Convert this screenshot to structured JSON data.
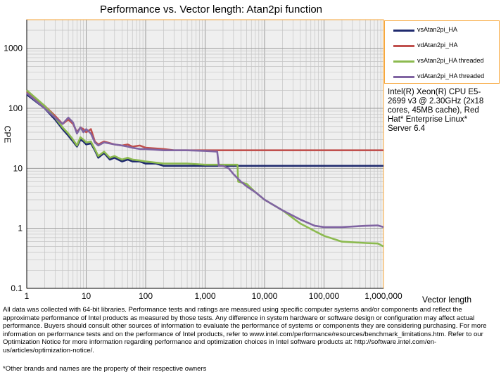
{
  "chart_data": {
    "type": "line",
    "title": "Performance vs. Vector length: Atan2pi function",
    "xlabel": "Vector length",
    "ylabel": "CPE",
    "xscale": "log",
    "yscale": "log",
    "xlim": [
      1,
      1000000
    ],
    "ylim": [
      0.1,
      3000
    ],
    "grid": true,
    "legend_position": "top-right",
    "x_tick_labels": [
      "1",
      "10",
      "100",
      "1,000",
      "10,000",
      "100,000",
      "1,000,000"
    ],
    "y_tick_labels": [
      "0.1",
      "1",
      "10",
      "100",
      "1000"
    ],
    "series": [
      {
        "name": "vsAtan2pi_HA",
        "color": "#1f2a6e",
        "points": [
          [
            1,
            170
          ],
          [
            2,
            100
          ],
          [
            3,
            65
          ],
          [
            4,
            45
          ],
          [
            5,
            35
          ],
          [
            6,
            28
          ],
          [
            7,
            23
          ],
          [
            8,
            30
          ],
          [
            9,
            28
          ],
          [
            10,
            25
          ],
          [
            12,
            26
          ],
          [
            14,
            20
          ],
          [
            16,
            15
          ],
          [
            20,
            18
          ],
          [
            25,
            14
          ],
          [
            30,
            15
          ],
          [
            40,
            13
          ],
          [
            50,
            14
          ],
          [
            60,
            13
          ],
          [
            80,
            13
          ],
          [
            100,
            12
          ],
          [
            150,
            12
          ],
          [
            200,
            11
          ],
          [
            300,
            11
          ],
          [
            500,
            11
          ],
          [
            1000,
            11
          ],
          [
            2000,
            11
          ],
          [
            5000,
            11
          ],
          [
            10000,
            11
          ],
          [
            100000,
            11
          ],
          [
            1000000,
            11
          ]
        ]
      },
      {
        "name": "vdAtan2pi_HA",
        "color": "#c0504d",
        "points": [
          [
            1,
            190
          ],
          [
            2,
            110
          ],
          [
            3,
            75
          ],
          [
            4,
            55
          ],
          [
            5,
            65
          ],
          [
            6,
            55
          ],
          [
            7,
            40
          ],
          [
            8,
            48
          ],
          [
            9,
            45
          ],
          [
            10,
            40
          ],
          [
            12,
            45
          ],
          [
            14,
            28
          ],
          [
            16,
            25
          ],
          [
            20,
            28
          ],
          [
            30,
            25
          ],
          [
            40,
            24
          ],
          [
            50,
            25
          ],
          [
            60,
            23
          ],
          [
            80,
            24
          ],
          [
            100,
            22
          ],
          [
            200,
            21
          ],
          [
            300,
            20
          ],
          [
            500,
            20
          ],
          [
            1000,
            20
          ],
          [
            2000,
            20
          ],
          [
            5000,
            20
          ],
          [
            10000,
            20
          ],
          [
            100000,
            20
          ],
          [
            1000000,
            20
          ]
        ]
      },
      {
        "name": "vsAtan2pi_HA threaded",
        "color": "#8cba4f",
        "points": [
          [
            1,
            200
          ],
          [
            2,
            110
          ],
          [
            3,
            70
          ],
          [
            4,
            48
          ],
          [
            5,
            38
          ],
          [
            6,
            30
          ],
          [
            7,
            24
          ],
          [
            8,
            33
          ],
          [
            9,
            30
          ],
          [
            10,
            27
          ],
          [
            12,
            28
          ],
          [
            14,
            21
          ],
          [
            16,
            16
          ],
          [
            20,
            19
          ],
          [
            25,
            15
          ],
          [
            30,
            16
          ],
          [
            40,
            14
          ],
          [
            50,
            15
          ],
          [
            60,
            14
          ],
          [
            80,
            13.5
          ],
          [
            100,
            13
          ],
          [
            200,
            12
          ],
          [
            500,
            12
          ],
          [
            1000,
            11.5
          ],
          [
            2000,
            11.5
          ],
          [
            3500,
            11.5
          ],
          [
            3600,
            6
          ],
          [
            5000,
            5.5
          ],
          [
            7000,
            4
          ],
          [
            10000,
            3
          ],
          [
            20000,
            2
          ],
          [
            40000,
            1.2
          ],
          [
            70000,
            0.9
          ],
          [
            100000,
            0.75
          ],
          [
            200000,
            0.6
          ],
          [
            500000,
            0.57
          ],
          [
            800000,
            0.56
          ],
          [
            1000000,
            0.5
          ]
        ]
      },
      {
        "name": "vdAtan2pi_HA threaded",
        "color": "#8064a2",
        "points": [
          [
            1,
            180
          ],
          [
            2,
            100
          ],
          [
            3,
            70
          ],
          [
            4,
            55
          ],
          [
            5,
            70
          ],
          [
            6,
            58
          ],
          [
            7,
            38
          ],
          [
            8,
            48
          ],
          [
            9,
            40
          ],
          [
            10,
            45
          ],
          [
            12,
            38
          ],
          [
            14,
            27
          ],
          [
            16,
            24
          ],
          [
            20,
            27
          ],
          [
            30,
            25
          ],
          [
            40,
            24
          ],
          [
            50,
            23
          ],
          [
            60,
            22
          ],
          [
            80,
            21
          ],
          [
            100,
            21
          ],
          [
            200,
            20
          ],
          [
            500,
            20
          ],
          [
            1000,
            19.5
          ],
          [
            1600,
            19
          ],
          [
            1700,
            11
          ],
          [
            2000,
            11
          ],
          [
            2500,
            10
          ],
          [
            3000,
            8
          ],
          [
            4000,
            6
          ],
          [
            5000,
            5
          ],
          [
            7000,
            4
          ],
          [
            10000,
            3
          ],
          [
            20000,
            2
          ],
          [
            40000,
            1.4
          ],
          [
            70000,
            1.1
          ],
          [
            100000,
            1.05
          ],
          [
            200000,
            1.05
          ],
          [
            500000,
            1.1
          ],
          [
            800000,
            1.12
          ],
          [
            1000000,
            1.05
          ]
        ]
      }
    ]
  },
  "cpu_note": "Intel(R) Xeon(R) CPU E5-2699 v3 @ 2.30GHz (2x18 cores, 45MB cache), Red Hat* Enterprise Linux* Server 6.4",
  "disclaimer": "All data was collected with 64-bit libraries. Performance tests and ratings are measured using specific computer systems and/or components and reflect the approximate performance of Intel products as measured by those tests. Any difference in system hardware or software design or configuration may affect actual performance. Buyers should consult other sources of information to evaluate the performance of systems or components they are considering purchasing. For more information on performance tests and on the performance of Intel products, refer to www.intel.com/performance/resources/benchmark_limitations.htm. Refer to our Optimization Notice for more information regarding performance and optimization choices in Intel software products at: http://software.intel.com/en-us/articles/optimization-notice/.",
  "footnote": "*Other brands and names are the property of their respective owners"
}
